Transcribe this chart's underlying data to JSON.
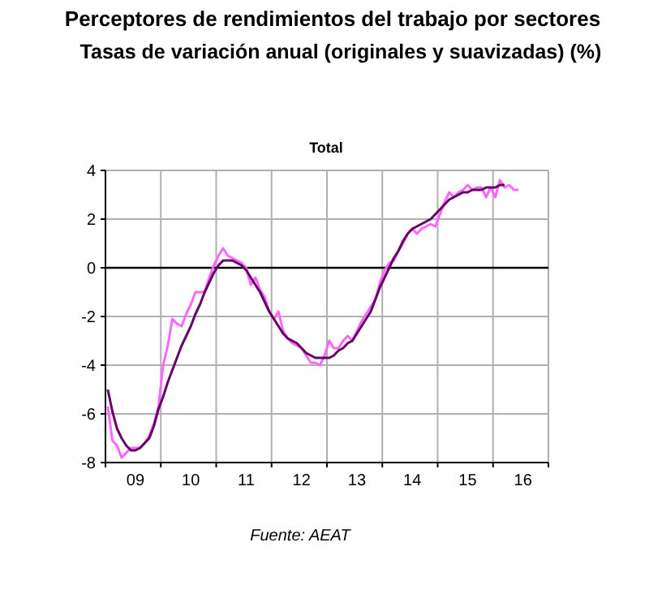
{
  "chart_data": {
    "type": "line",
    "title": "Perceptores de rendimientos del trabajo por sectores",
    "subtitle": "Tasas de variación anual (originales y suavizadas) (%)",
    "annotations": [
      "Total",
      "Fuente: AEAT"
    ],
    "categories": [
      null,
      null,
      null,
      null,
      null,
      null,
      "09",
      null,
      null,
      null,
      null,
      null,
      null,
      null,
      null,
      null,
      null,
      null,
      "10",
      null,
      null,
      null,
      null,
      null,
      null,
      null,
      null,
      null,
      null,
      null,
      "11",
      null,
      null,
      null,
      null,
      null,
      null,
      null,
      null,
      null,
      null,
      null,
      "12",
      null,
      null,
      null,
      null,
      null,
      null,
      null,
      null,
      null,
      null,
      null,
      "13",
      null,
      null,
      null,
      null,
      null,
      null,
      null,
      null,
      null,
      null,
      null,
      "14",
      null,
      null,
      null,
      null,
      null,
      null,
      null,
      null,
      null,
      null,
      null,
      "15",
      null,
      null,
      null,
      null,
      null,
      null,
      null,
      null,
      null,
      null,
      null,
      "16",
      null,
      null,
      null,
      null,
      null
    ],
    "ylim": [
      -8,
      4
    ],
    "yticks": [
      -8,
      -6,
      -4,
      -2,
      0,
      2,
      4
    ],
    "grid": true,
    "ref_lines": [
      {
        "axis": "y",
        "value": 0,
        "color": "#000000"
      }
    ],
    "series": [
      {
        "color": "#ff66ff",
        "values": [
          -5.7,
          -7.1,
          -7.3,
          -7.8,
          -7.6,
          -7.4,
          -7.4,
          -7.4,
          -7.2,
          -6.9,
          -6.4,
          -5.7,
          -4.0,
          -3.2,
          -2.1,
          -2.3,
          -2.4,
          -1.9,
          -1.5,
          -1.0,
          -1.0,
          -1.0,
          -0.4,
          0.1,
          0.5,
          0.8,
          0.5,
          0.4,
          0.3,
          0.2,
          0.0,
          -0.7,
          -0.4,
          -0.9,
          -1.2,
          -1.8,
          -2.1,
          -1.8,
          -2.6,
          -2.9,
          -3.1,
          -3.2,
          -3.3,
          -3.6,
          -3.9,
          -3.9,
          -4.0,
          -3.6,
          -3.0,
          -3.3,
          -3.3,
          -3.0,
          -2.8,
          -3.0,
          -2.6,
          -2.2,
          -1.9,
          -1.6,
          -1.3,
          -0.6,
          -0.1,
          0.2,
          0.3,
          0.7,
          1.0,
          1.4,
          1.6,
          1.4,
          1.6,
          1.7,
          1.8,
          1.7,
          2.2,
          2.7,
          3.1,
          2.9,
          3.1,
          3.2,
          3.4,
          3.2,
          3.3,
          3.3,
          2.9,
          3.3,
          2.9,
          3.6,
          3.3,
          3.4,
          3.2,
          3.2,
          null,
          null,
          null,
          null,
          null,
          null
        ]
      },
      {
        "color": "#660066",
        "values": [
          -5.0,
          -5.9,
          -6.6,
          -7.0,
          -7.3,
          -7.5,
          -7.5,
          -7.4,
          -7.2,
          -7.0,
          -6.5,
          -5.8,
          -5.3,
          -4.7,
          -4.2,
          -3.7,
          -3.2,
          -2.8,
          -2.4,
          -1.9,
          -1.5,
          -1.0,
          -0.6,
          -0.2,
          0.1,
          0.3,
          0.3,
          0.3,
          0.2,
          0.1,
          -0.1,
          -0.4,
          -0.7,
          -1.0,
          -1.4,
          -1.8,
          -2.1,
          -2.4,
          -2.7,
          -2.9,
          -3.0,
          -3.1,
          -3.3,
          -3.5,
          -3.6,
          -3.7,
          -3.7,
          -3.7,
          -3.7,
          -3.6,
          -3.4,
          -3.3,
          -3.1,
          -3.0,
          -2.7,
          -2.4,
          -2.1,
          -1.8,
          -1.3,
          -0.8,
          -0.4,
          0.0,
          0.4,
          0.7,
          1.1,
          1.4,
          1.6,
          1.7,
          1.8,
          1.9,
          2.0,
          2.2,
          2.4,
          2.6,
          2.8,
          2.9,
          3.0,
          3.1,
          3.1,
          3.2,
          3.2,
          3.2,
          3.3,
          3.3,
          3.3,
          3.4,
          3.4,
          null,
          null,
          null,
          null,
          null,
          null,
          null,
          null,
          null
        ]
      }
    ]
  }
}
